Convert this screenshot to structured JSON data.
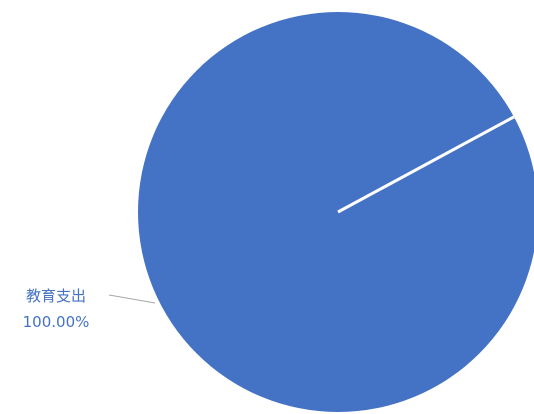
{
  "chart_data": {
    "type": "pie",
    "categories": [
      "教育支出"
    ],
    "values": [
      100
    ],
    "data_labels": [
      {
        "category": "教育支出",
        "percent": "100.00%"
      }
    ],
    "legend": "none",
    "colors": {
      "slice": "#4472C4",
      "separator": "#ffffff",
      "label_text": "#4472C4",
      "leader_line": "#A6A6A6"
    }
  }
}
